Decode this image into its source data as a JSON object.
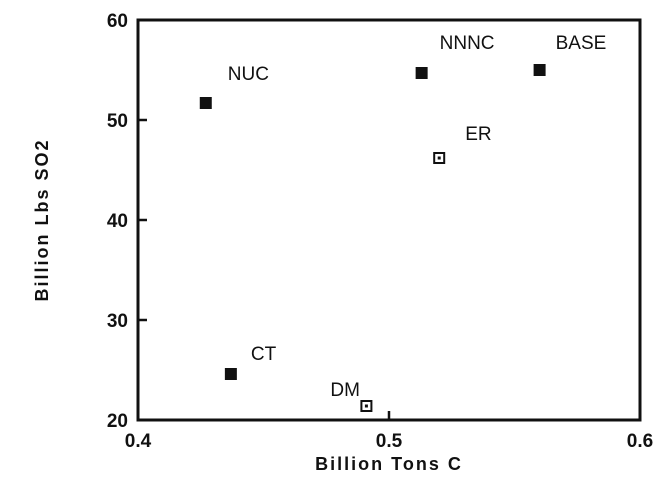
{
  "chart_data": {
    "type": "scatter",
    "title": "",
    "xlabel": "Billion Tons C",
    "ylabel": "Billion Lbs SO2",
    "xlim": [
      0.4,
      0.6
    ],
    "ylim": [
      20,
      60
    ],
    "x_ticks": [
      0.4,
      0.5,
      0.6
    ],
    "x_tick_labels": [
      "0.4",
      "0.5",
      "0.6"
    ],
    "y_ticks": [
      20,
      30,
      40,
      50,
      60
    ],
    "y_tick_labels": [
      "20",
      "30",
      "40",
      "50",
      "60"
    ],
    "grid": false,
    "points": [
      {
        "label": "NUC",
        "x": 0.427,
        "y": 51.7,
        "marker": "filled-square"
      },
      {
        "label": "NNNC",
        "x": 0.513,
        "y": 54.7,
        "marker": "filled-square"
      },
      {
        "label": "BASE",
        "x": 0.56,
        "y": 55.0,
        "marker": "filled-square"
      },
      {
        "label": "ER",
        "x": 0.52,
        "y": 46.2,
        "marker": "hollow-square"
      },
      {
        "label": "CT",
        "x": 0.437,
        "y": 24.6,
        "marker": "filled-square"
      },
      {
        "label": "DM",
        "x": 0.491,
        "y": 21.4,
        "marker": "hollow-square"
      }
    ],
    "colors": {
      "marker": "#111111",
      "axis": "#111111"
    }
  }
}
